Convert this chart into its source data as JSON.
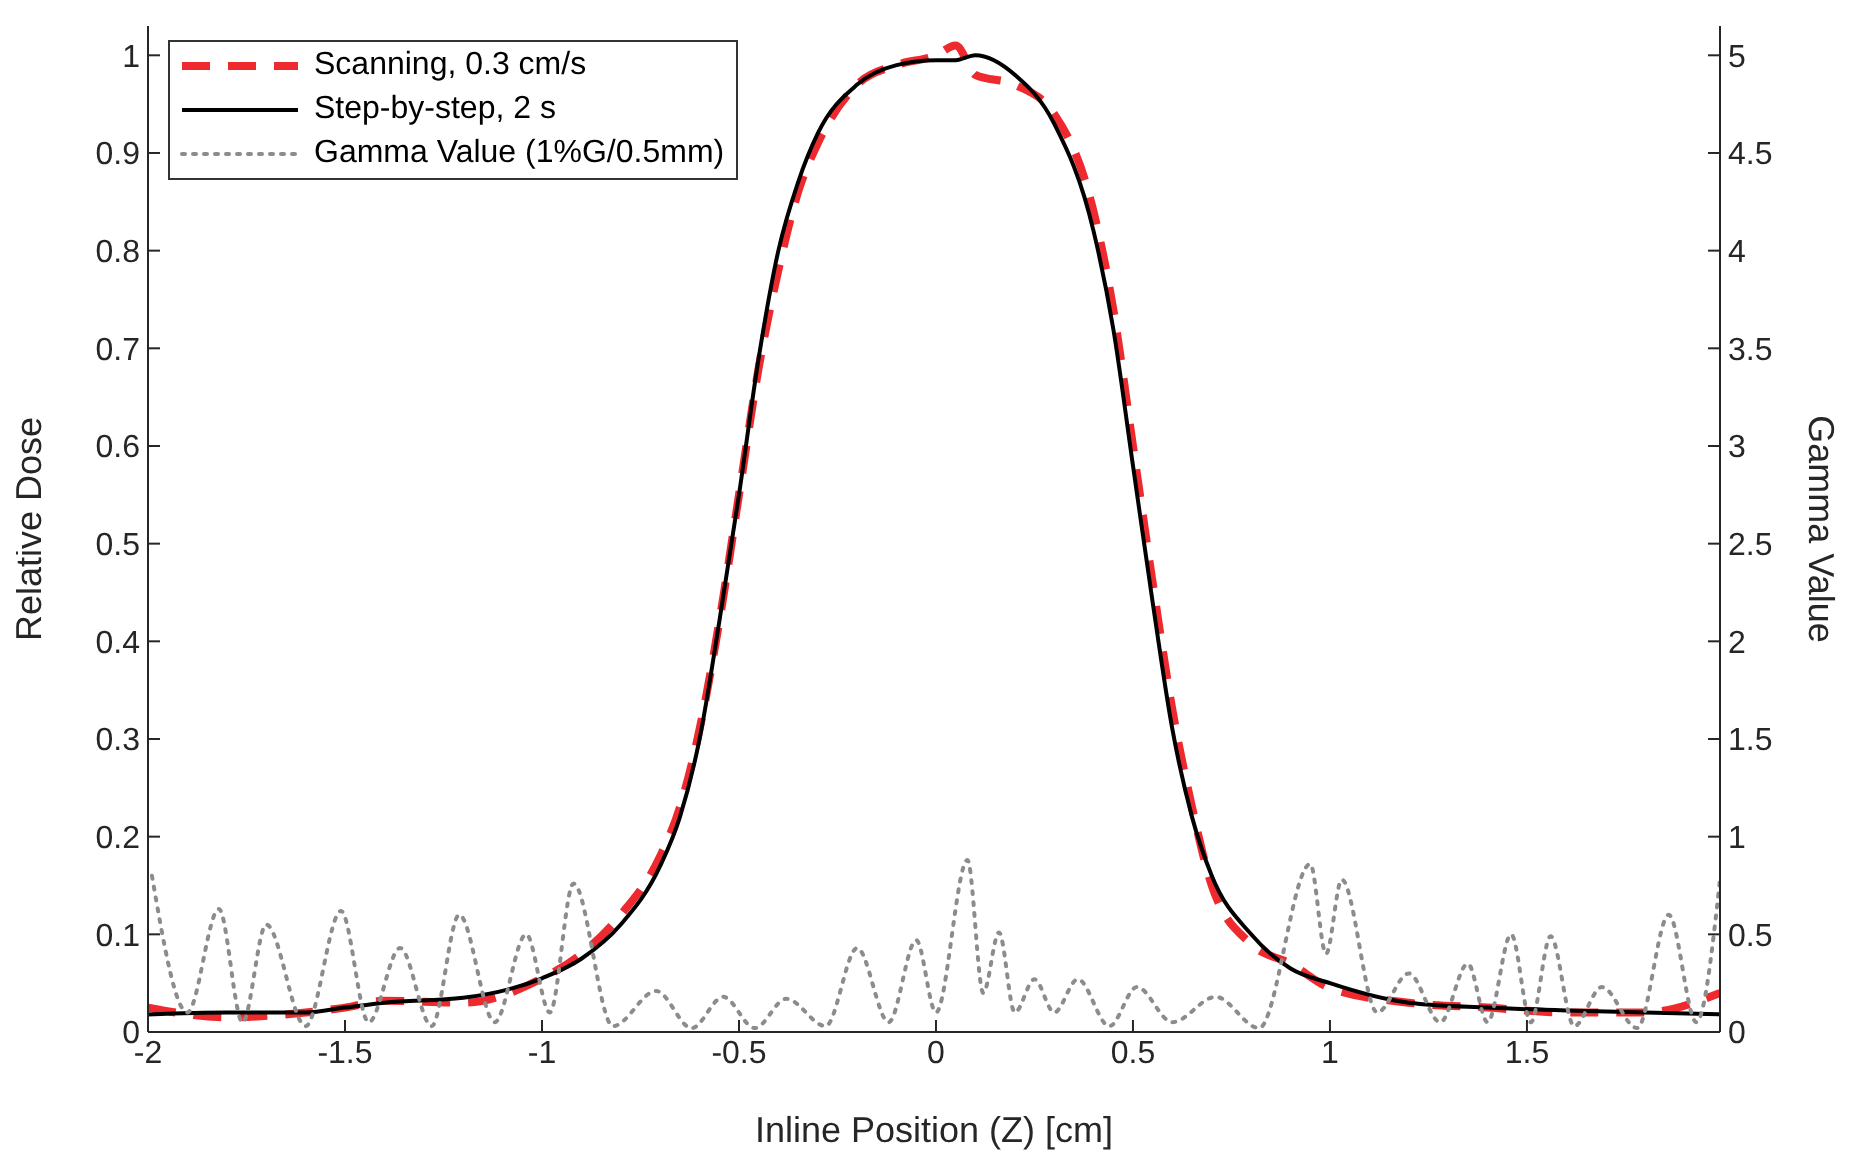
{
  "chart_data": {
    "type": "line",
    "xlabel": "Inline Position (Z) [cm]",
    "ylabel": "Relative Dose",
    "y2label": "Gamma Value",
    "xlim": [
      -2,
      1.99
    ],
    "xticks": [
      -2,
      -1.5,
      -1,
      -0.5,
      0,
      0.5,
      1,
      1.5
    ],
    "ylim": [
      0,
      1.03
    ],
    "yticks": [
      0,
      0.1,
      0.2,
      0.3,
      0.4,
      0.5,
      0.6,
      0.7,
      0.8,
      0.9,
      1
    ],
    "y2lim": [
      0,
      5.15
    ],
    "y2ticks": [
      0,
      0.5,
      1,
      1.5,
      2,
      2.5,
      3,
      3.5,
      4,
      4.5,
      5
    ],
    "grid": false,
    "legend": "top left",
    "marker": "none",
    "series": [
      {
        "name": "Scanning, 0.3 cm/s",
        "color": "#ee2a2f",
        "line_style": "dashed",
        "x": [
          -2,
          -1.8,
          -1.6,
          -1.5,
          -1.4,
          -1.2,
          -1,
          -0.9,
          -0.8,
          -0.7,
          -0.65,
          -0.6,
          -0.55,
          -0.5,
          -0.45,
          -0.4,
          -0.35,
          -0.3,
          -0.2,
          -0.1,
          0,
          0.05,
          0.1,
          0.2,
          0.3,
          0.4,
          0.45,
          0.5,
          0.55,
          0.6,
          0.65,
          0.7,
          0.8,
          0.9,
          1,
          1.2,
          1.4,
          1.6,
          1.8,
          1.99
        ],
        "values": [
          0.025,
          0.015,
          0.02,
          0.025,
          0.032,
          0.03,
          0.055,
          0.08,
          0.12,
          0.18,
          0.23,
          0.31,
          0.42,
          0.55,
          0.68,
          0.78,
          0.86,
          0.91,
          0.97,
          0.99,
          1,
          1.01,
          0.98,
          0.97,
          0.94,
          0.84,
          0.74,
          0.6,
          0.46,
          0.33,
          0.23,
          0.15,
          0.09,
          0.07,
          0.045,
          0.03,
          0.025,
          0.02,
          0.02,
          0.04
        ]
      },
      {
        "name": "Step-by-step, 2 s",
        "color": "#000000",
        "line_style": "solid",
        "x": [
          -2,
          -1.8,
          -1.6,
          -1.5,
          -1.4,
          -1.2,
          -1,
          -0.9,
          -0.8,
          -0.7,
          -0.65,
          -0.6,
          -0.55,
          -0.5,
          -0.45,
          -0.4,
          -0.35,
          -0.3,
          -0.2,
          -0.1,
          0,
          0.05,
          0.1,
          0.2,
          0.3,
          0.4,
          0.45,
          0.5,
          0.55,
          0.6,
          0.65,
          0.7,
          0.8,
          0.9,
          1,
          1.2,
          1.4,
          1.6,
          1.8,
          1.99
        ],
        "values": [
          0.018,
          0.02,
          0.02,
          0.025,
          0.03,
          0.035,
          0.055,
          0.075,
          0.11,
          0.17,
          0.22,
          0.3,
          0.42,
          0.55,
          0.69,
          0.8,
          0.87,
          0.92,
          0.97,
          0.99,
          0.995,
          0.995,
          1,
          0.98,
          0.93,
          0.82,
          0.72,
          0.58,
          0.44,
          0.31,
          0.22,
          0.16,
          0.1,
          0.065,
          0.05,
          0.03,
          0.025,
          0.022,
          0.02,
          0.018
        ]
      },
      {
        "name": "Gamma Value (1%G/0.5mm)",
        "color": "#8c8c8c",
        "line_style": "dotted",
        "axis": "y2",
        "x": [
          -1.99,
          -1.9,
          -1.82,
          -1.76,
          -1.7,
          -1.6,
          -1.51,
          -1.44,
          -1.36,
          -1.28,
          -1.21,
          -1.12,
          -1.04,
          -0.98,
          -0.92,
          -0.82,
          -0.71,
          -0.62,
          -0.54,
          -0.46,
          -0.38,
          -0.28,
          -0.2,
          -0.12,
          -0.05,
          0,
          0.08,
          0.12,
          0.16,
          0.2,
          0.25,
          0.3,
          0.36,
          0.44,
          0.51,
          0.6,
          0.71,
          0.82,
          0.95,
          0.99,
          1.03,
          1.12,
          1.2,
          1.28,
          1.35,
          1.4,
          1.46,
          1.51,
          1.56,
          1.62,
          1.69,
          1.78,
          1.86,
          1.93,
          1.99
        ],
        "values": [
          0.8,
          0.1,
          0.63,
          0.05,
          0.55,
          0.03,
          0.62,
          0.05,
          0.43,
          0.03,
          0.6,
          0.05,
          0.5,
          0.1,
          0.76,
          0.03,
          0.21,
          0.02,
          0.18,
          0.02,
          0.17,
          0.03,
          0.43,
          0.05,
          0.47,
          0.1,
          0.88,
          0.2,
          0.51,
          0.1,
          0.27,
          0.1,
          0.27,
          0.03,
          0.23,
          0.05,
          0.18,
          0.02,
          0.86,
          0.4,
          0.78,
          0.1,
          0.3,
          0.05,
          0.35,
          0.05,
          0.5,
          0.05,
          0.49,
          0.03,
          0.23,
          0.02,
          0.6,
          0.05,
          0.78
        ]
      }
    ]
  }
}
